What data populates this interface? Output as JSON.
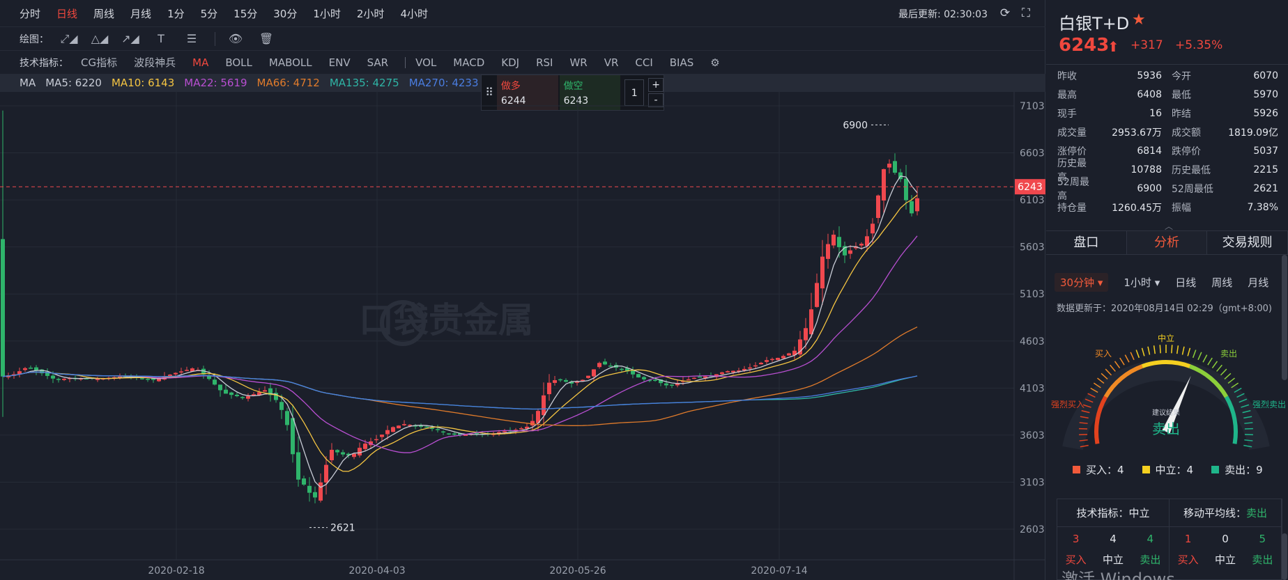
{
  "periods": [
    "分时",
    "日线",
    "周线",
    "月线",
    "1分",
    "5分",
    "15分",
    "30分",
    "1小时",
    "2小时",
    "4小时"
  ],
  "active_period": "日线",
  "last_update": "最后更新: 02:30:03",
  "draw_label": "绘图：",
  "indicator_label": "技术指标：",
  "indicators_main": [
    "CG指标",
    "波段神兵",
    "MA",
    "BOLL",
    "MABOLL",
    "ENV",
    "SAR"
  ],
  "indicators_sub": [
    "VOL",
    "MACD",
    "KDJ",
    "RSI",
    "WR",
    "VR",
    "CCI",
    "BIAS"
  ],
  "active_indicator": "MA",
  "ma_row": {
    "label": "MA",
    "items": [
      {
        "text": "MA5: 6220",
        "color": "#c8ccd6"
      },
      {
        "text": "MA10: 6143",
        "color": "#f5c542"
      },
      {
        "text": "MA22: 5619",
        "color": "#b84fd1"
      },
      {
        "text": "MA66: 4712",
        "color": "#e07b2b"
      },
      {
        "text": "MA135: 4275",
        "color": "#2fb5a6"
      },
      {
        "text": "MA270: 4233",
        "color": "#4a7de0"
      }
    ]
  },
  "trade": {
    "buy_label": "做多",
    "buy_value": "6244",
    "sell_label": "做空",
    "sell_value": "6243",
    "qty": "1",
    "plus": "+",
    "minus": "-"
  },
  "chart": {
    "y_ticks": [
      "7103",
      "6603",
      "6103",
      "5603",
      "5103",
      "4603",
      "4103",
      "3603",
      "3103",
      "2603"
    ],
    "x_ticks": [
      "2020-02-18",
      "2020-04-03",
      "2020-05-26",
      "2020-07-14"
    ],
    "current_price_tag": "6243",
    "high_label": "6900",
    "low_label": "2621",
    "watermark": "口袋贵金属"
  },
  "chart_data": {
    "type": "candlestick",
    "ylim": [
      2603,
      7103
    ],
    "current": 6243,
    "high": 6900,
    "low": 2621
  },
  "right": {
    "title": "白银T+D",
    "price": "6243",
    "change": "+317",
    "change_pct": "+5.35%",
    "stats": [
      [
        "昨收",
        "5936",
        "今开",
        "6070"
      ],
      [
        "最高",
        "6408",
        "最低",
        "5970"
      ],
      [
        "现手",
        "16",
        "昨结",
        "5926"
      ],
      [
        "成交量",
        "2953.67万",
        "成交额",
        "1819.09亿"
      ],
      [
        "涨停价",
        "6814",
        "跌停价",
        "5037"
      ],
      [
        "历史最高",
        "10788",
        "历史最低",
        "2215"
      ],
      [
        "52周最高",
        "6900",
        "52周最低",
        "2621"
      ],
      [
        "持仓量",
        "1260.45万",
        "振幅",
        "7.38%"
      ]
    ],
    "tabs": [
      "盘口",
      "分析",
      "交易规则"
    ],
    "active_tab": "分析",
    "analysis_periods": [
      "30分钟 ▾",
      "1小时 ▾",
      "日线",
      "周线",
      "月线"
    ],
    "updated": "数据更新于：2020年08月14日 02:29（gmt+8:00)",
    "gauge": {
      "labels": [
        "强烈买入",
        "买入",
        "中立",
        "卖出",
        "强烈卖出"
      ],
      "caption": "建议结果",
      "result": "卖出",
      "value": 0.62
    },
    "legend": [
      {
        "label": "买入：4",
        "color": "#f25a3b"
      },
      {
        "label": "中立：4",
        "color": "#f5d020"
      },
      {
        "label": "卖出：9",
        "color": "#1fb58a"
      }
    ],
    "summary": [
      {
        "title": "技术指标：",
        "verdict": "中立",
        "nums": [
          "3",
          "4",
          "4"
        ],
        "labs": [
          "买入",
          "中立",
          "卖出"
        ]
      },
      {
        "title": "移动平均线：",
        "verdict": "卖出",
        "nums": [
          "1",
          "0",
          "5"
        ],
        "labs": [
          "买入",
          "中立",
          "卖出"
        ]
      }
    ],
    "windows_watermark": "激活 Windows"
  }
}
